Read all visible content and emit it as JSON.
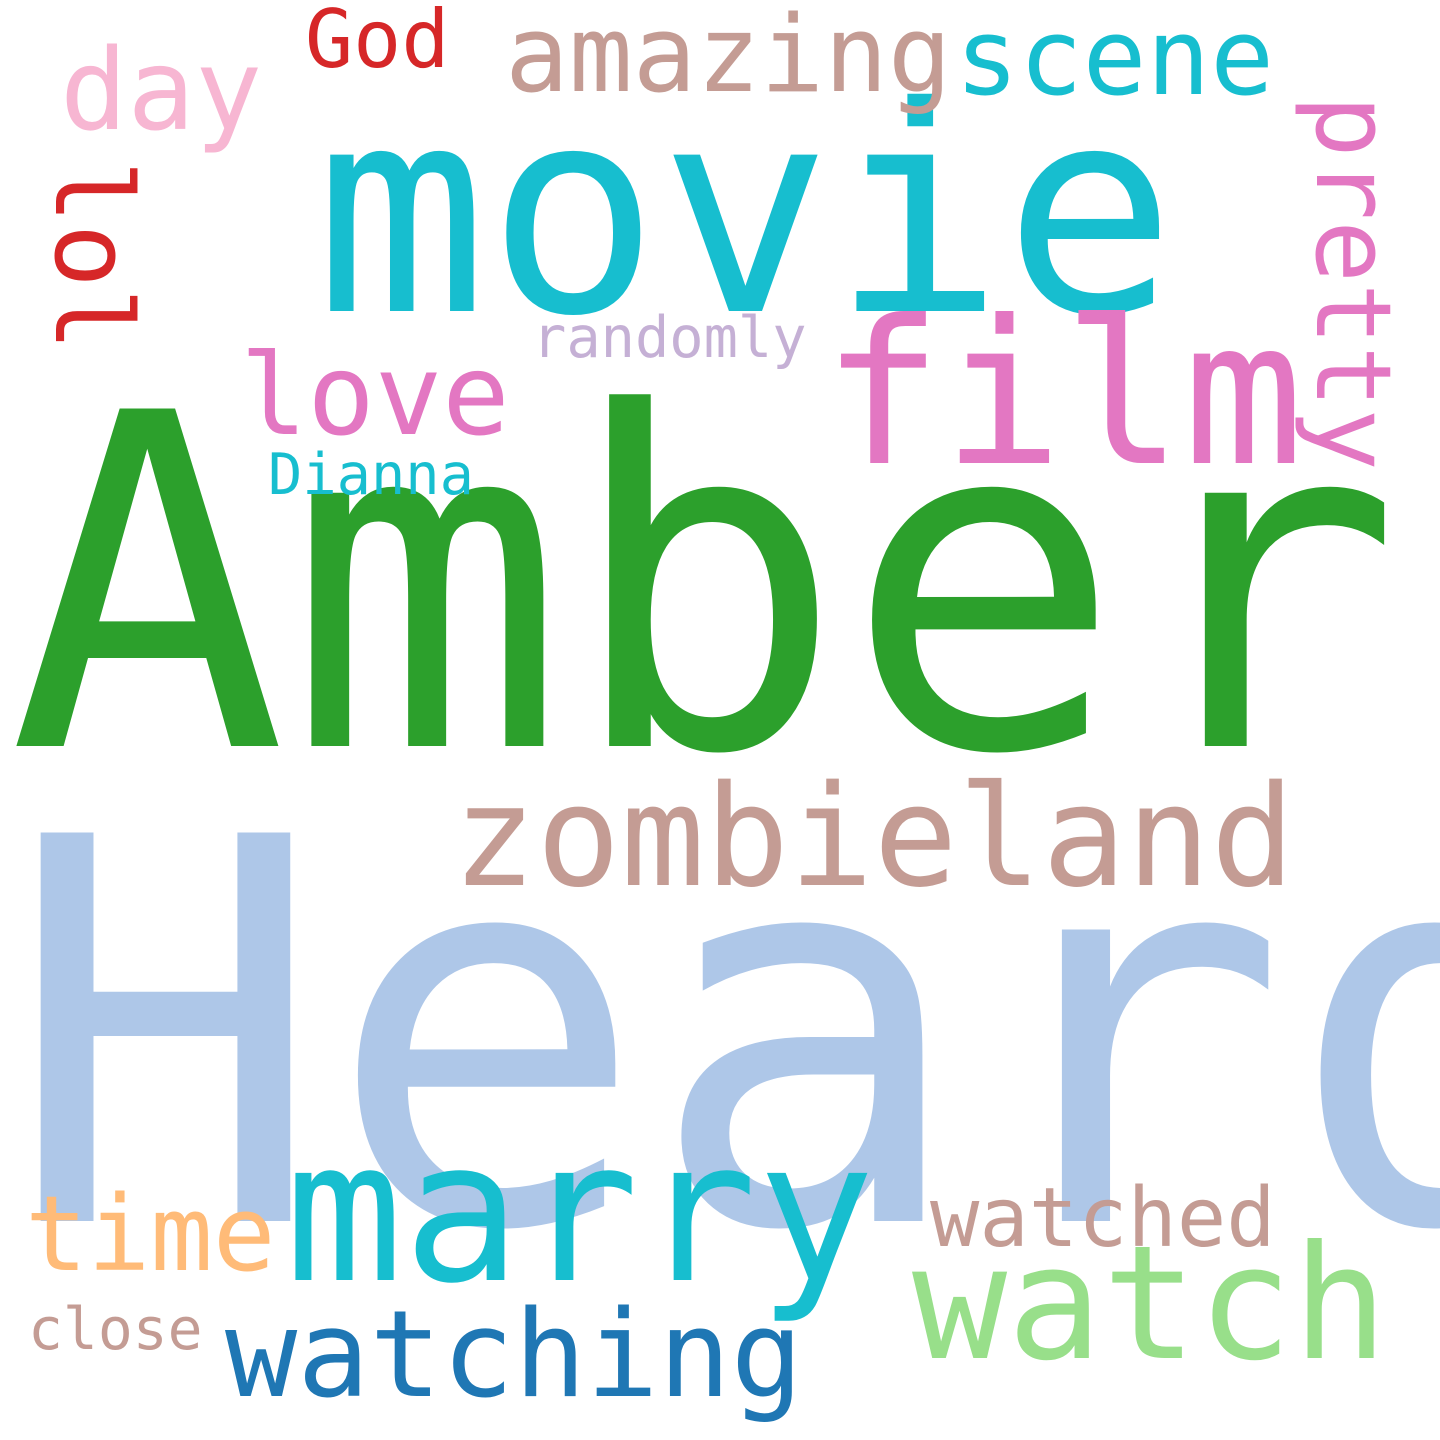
{
  "words": {
    "heard": {
      "text": "Heard",
      "color": "#aec7e8"
    },
    "amber": {
      "text": "Amber",
      "color": "#2ca02c"
    },
    "movie": {
      "text": "movie",
      "color": "#17becf"
    },
    "film": {
      "text": "film",
      "color": "#e377c2"
    },
    "zombieland": {
      "text": "zombieland",
      "color": "#c49c94"
    },
    "marry": {
      "text": "marry",
      "color": "#17becf"
    },
    "watch": {
      "text": "watch",
      "color": "#98df8a"
    },
    "watching": {
      "text": "watching",
      "color": "#1f77b4"
    },
    "amazing": {
      "text": "amazing",
      "color": "#c49c94"
    },
    "scene": {
      "text": "scene",
      "color": "#17becf"
    },
    "pretty": {
      "text": "pretty",
      "color": "#e377c2"
    },
    "love": {
      "text": "love",
      "color": "#e377c2"
    },
    "day": {
      "text": "day",
      "color": "#f7b6d2"
    },
    "god": {
      "text": "God",
      "color": "#d62728"
    },
    "lol": {
      "text": "lol",
      "color": "#d62728"
    },
    "watched": {
      "text": "watched",
      "color": "#c49c94"
    },
    "time": {
      "text": "time",
      "color": "#ffbb78"
    },
    "randomly": {
      "text": "randomly",
      "color": "#c5b0d5"
    },
    "dianna": {
      "text": "Dianna",
      "color": "#17becf"
    },
    "close": {
      "text": "close",
      "color": "#c49c94"
    }
  }
}
